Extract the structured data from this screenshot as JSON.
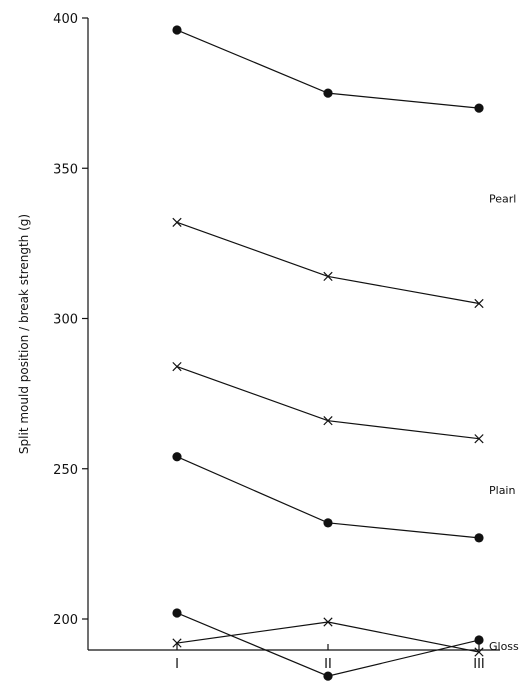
{
  "chart_data": {
    "type": "line",
    "ylabel": "Split mould position / break strength (g)",
    "xlabel": "",
    "title": "",
    "categories": [
      "I",
      "II",
      "III"
    ],
    "ylim": [
      180,
      400
    ],
    "yticks": [
      "400",
      "350",
      "300",
      "250",
      "200"
    ],
    "grid": false,
    "series": [
      {
        "group": "Pearl",
        "marker": "dot",
        "values": [
          396,
          375,
          370
        ]
      },
      {
        "group": "Pearl",
        "marker": "cross",
        "values": [
          332,
          314,
          305
        ]
      },
      {
        "group": "Plain",
        "marker": "cross",
        "values": [
          284,
          266,
          260
        ]
      },
      {
        "group": "Plain",
        "marker": "dot",
        "values": [
          254,
          232,
          227
        ]
      },
      {
        "group": "Gloss",
        "marker": "dot",
        "values": [
          202,
          181,
          193
        ]
      },
      {
        "group": "Gloss",
        "marker": "cross",
        "values": [
          192,
          199,
          189
        ]
      }
    ],
    "group_labels": [
      {
        "text": "Pearl",
        "value": 340
      },
      {
        "text": "Plain",
        "value": 243
      },
      {
        "text": "Gloss",
        "value": 191
      }
    ]
  }
}
